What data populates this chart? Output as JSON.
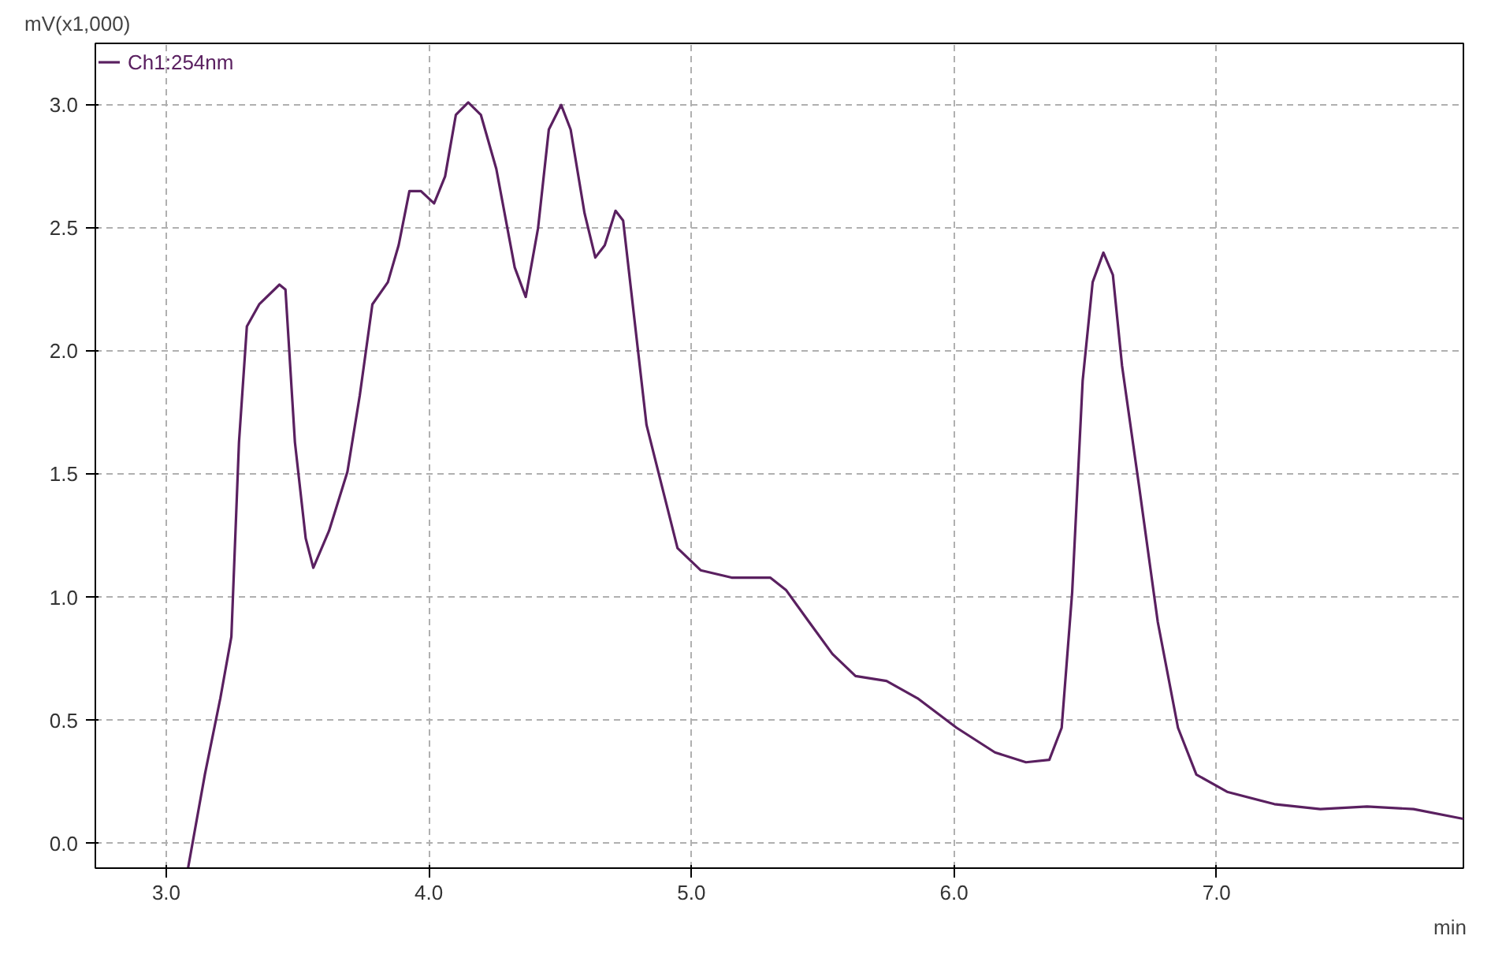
{
  "chart_data": {
    "type": "line",
    "xlabel": "min",
    "ylabel": "mV(x1,000)",
    "xlim": [
      2.73,
      7.94
    ],
    "ylim": [
      -0.1,
      3.25
    ],
    "xticks": [
      {
        "value": 3,
        "label": "3.0"
      },
      {
        "value": 4,
        "label": "4.0"
      },
      {
        "value": 5,
        "label": "5.0"
      },
      {
        "value": 6,
        "label": "6.0"
      },
      {
        "value": 7,
        "label": "7.0"
      }
    ],
    "yticks": [
      {
        "value": 0,
        "label": "0.0"
      },
      0.5,
      {
        "value": 1,
        "label": "1.0"
      },
      1.5,
      {
        "value": 2,
        "label": "2.0"
      },
      2.5,
      {
        "value": 3,
        "label": "3.0"
      }
    ],
    "grid": true,
    "legend": "top left",
    "marker": "none",
    "line_style": "solid",
    "series": [
      {
        "name": "Ch1:254nm",
        "color": "#5a2060",
        "x": [
          3.083,
          3.147,
          3.206,
          3.248,
          3.277,
          3.307,
          3.354,
          3.431,
          3.454,
          3.49,
          3.531,
          3.56,
          3.62,
          3.69,
          3.737,
          3.785,
          3.844,
          3.885,
          3.926,
          3.97,
          4.02,
          4.062,
          4.103,
          4.15,
          4.198,
          4.257,
          4.327,
          4.369,
          4.416,
          4.457,
          4.504,
          4.54,
          4.593,
          4.634,
          4.67,
          4.711,
          4.74,
          4.77,
          4.829,
          4.888,
          4.947,
          5.035,
          5.153,
          5.3,
          5.36,
          5.448,
          5.537,
          5.625,
          5.743,
          5.861,
          6.01,
          6.156,
          6.274,
          6.363,
          6.41,
          6.45,
          6.49,
          6.528,
          6.569,
          6.605,
          6.64,
          6.705,
          6.776,
          6.853,
          6.923,
          7.04,
          7.22,
          7.395,
          7.573,
          7.75,
          7.94
        ],
        "values": [
          -0.1,
          0.28,
          0.59,
          0.84,
          1.63,
          2.1,
          2.19,
          2.27,
          2.25,
          1.63,
          1.24,
          1.12,
          1.27,
          1.51,
          1.82,
          2.19,
          2.28,
          2.43,
          2.65,
          2.65,
          2.6,
          2.71,
          2.96,
          3.01,
          2.96,
          2.74,
          2.34,
          2.22,
          2.5,
          2.9,
          3.0,
          2.9,
          2.56,
          2.38,
          2.43,
          2.57,
          2.53,
          2.25,
          1.7,
          1.45,
          1.2,
          1.11,
          1.08,
          1.08,
          1.03,
          0.9,
          0.77,
          0.68,
          0.66,
          0.59,
          0.47,
          0.37,
          0.33,
          0.34,
          0.47,
          1.02,
          1.88,
          2.28,
          2.4,
          2.31,
          1.94,
          1.45,
          0.9,
          0.47,
          0.28,
          0.21,
          0.16,
          0.14,
          0.15,
          0.14,
          0.1
        ]
      }
    ]
  }
}
